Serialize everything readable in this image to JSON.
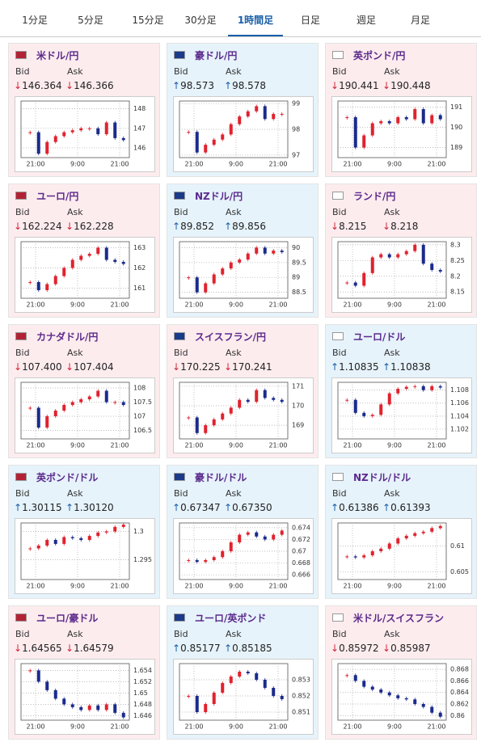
{
  "tabs": [
    "1分足",
    "5分足",
    "15分足",
    "30分足",
    "1時間足",
    "日足",
    "週足",
    "月足"
  ],
  "active_tab": 4,
  "bid_label": "Bid",
  "ask_label": "Ask",
  "x_labels": [
    "21:00",
    "9:00",
    "21:00"
  ],
  "panels": [
    {
      "name": "米ドル/円",
      "trend": "down",
      "bid": "↓146.364",
      "ask": "↓146.366",
      "ylim": [
        145.5,
        148.4
      ],
      "yticks": [
        146,
        147,
        148
      ],
      "values": [
        146.8,
        145.7,
        146.3,
        146.6,
        146.8,
        146.9,
        147.0,
        147.0,
        146.7,
        147.3,
        146.5,
        146.4
      ]
    },
    {
      "name": "豪ドル/円",
      "trend": "up",
      "bid": "↑98.573",
      "ask": "↑98.578",
      "ylim": [
        96.9,
        99.1
      ],
      "yticks": [
        97,
        98,
        99
      ],
      "values": [
        97.9,
        97.1,
        97.4,
        97.6,
        97.8,
        98.2,
        98.5,
        98.7,
        98.9,
        98.4,
        98.6,
        98.6
      ]
    },
    {
      "name": "英ポンド/円",
      "trend": "down",
      "bid": "↓190.441",
      "ask": "↓190.448",
      "ylim": [
        188.5,
        191.3
      ],
      "yticks": [
        189,
        190,
        191
      ],
      "values": [
        190.5,
        189.0,
        189.6,
        190.2,
        190.3,
        190.2,
        190.5,
        190.4,
        190.9,
        190.2,
        190.6,
        190.4
      ]
    },
    {
      "name": "ユーロ/円",
      "trend": "down",
      "bid": "↓162.224",
      "ask": "↓162.228",
      "ylim": [
        160.5,
        163.3
      ],
      "yticks": [
        161,
        162,
        163
      ],
      "values": [
        161.3,
        160.9,
        161.2,
        161.6,
        162.0,
        162.4,
        162.6,
        162.7,
        163.0,
        162.4,
        162.3,
        162.2
      ]
    },
    {
      "name": "NZドル/円",
      "trend": "up",
      "bid": "↑89.852",
      "ask": "↑89.856",
      "ylim": [
        88.3,
        90.2
      ],
      "yticks": [
        88.5,
        89,
        89.5,
        90
      ],
      "values": [
        89.0,
        88.5,
        88.8,
        89.1,
        89.3,
        89.5,
        89.6,
        89.8,
        90.0,
        89.8,
        89.9,
        89.85
      ]
    },
    {
      "name": "ランド/円",
      "trend": "down",
      "bid": "↓8.215",
      "ask": "↓8.218",
      "ylim": [
        8.13,
        8.31
      ],
      "yticks": [
        8.15,
        8.2,
        8.25,
        8.3
      ],
      "values": [
        8.18,
        8.17,
        8.21,
        8.26,
        8.27,
        8.26,
        8.27,
        8.28,
        8.3,
        8.24,
        8.22,
        8.215
      ]
    },
    {
      "name": "カナダドル/円",
      "trend": "down",
      "bid": "↓107.400",
      "ask": "↓107.404",
      "ylim": [
        106.2,
        108.2
      ],
      "yticks": [
        106.5,
        107,
        107.5,
        108
      ],
      "values": [
        107.3,
        106.6,
        107.0,
        107.2,
        107.4,
        107.5,
        107.6,
        107.7,
        107.9,
        107.5,
        107.5,
        107.4
      ]
    },
    {
      "name": "スイスフラン/円",
      "trend": "down",
      "bid": "↓170.225",
      "ask": "↓170.241",
      "ylim": [
        168.3,
        171.2
      ],
      "yticks": [
        169,
        170,
        171
      ],
      "values": [
        169.4,
        168.6,
        169.0,
        169.3,
        169.6,
        169.9,
        170.3,
        170.2,
        170.8,
        170.4,
        170.3,
        170.2
      ]
    },
    {
      "name": "ユーロ/ドル",
      "trend": "up",
      "bid": "↑1.10835",
      "ask": "↑1.10838",
      "ylim": [
        1.1005,
        1.1092
      ],
      "yticks": [
        1.102,
        1.104,
        1.106,
        1.108
      ],
      "values": [
        1.1065,
        1.1045,
        1.104,
        1.1042,
        1.1058,
        1.1075,
        1.1082,
        1.1085,
        1.1086,
        1.108,
        1.1086,
        1.1084
      ]
    },
    {
      "name": "英ポンド/ドル",
      "trend": "up",
      "bid": "↑1.30115",
      "ask": "↑1.30120",
      "ylim": [
        1.2915,
        1.3015
      ],
      "yticks": [
        1.295,
        1.3
      ],
      "values": [
        1.297,
        1.2975,
        1.2985,
        1.2978,
        1.299,
        1.2988,
        1.2985,
        1.2992,
        1.2998,
        1.3,
        1.3008,
        1.3012
      ]
    },
    {
      "name": "豪ドル/ドル",
      "trend": "up",
      "bid": "↑0.67347",
      "ask": "↑0.67350",
      "ylim": [
        0.6652,
        0.6748
      ],
      "yticks": [
        0.666,
        0.668,
        0.67,
        0.672,
        0.674
      ],
      "values": [
        0.6685,
        0.6682,
        0.6685,
        0.669,
        0.67,
        0.6715,
        0.6728,
        0.6732,
        0.6725,
        0.672,
        0.6728,
        0.6735
      ]
    },
    {
      "name": "NZドル/ドル",
      "trend": "up",
      "bid": "↑0.61386",
      "ask": "↑0.61393",
      "ylim": [
        0.6035,
        0.6145
      ],
      "yticks": [
        0.605,
        0.61
      ],
      "values": [
        0.608,
        0.6078,
        0.6082,
        0.609,
        0.6095,
        0.6105,
        0.6115,
        0.612,
        0.6125,
        0.6128,
        0.6135,
        0.6139
      ]
    },
    {
      "name": "ユーロ/豪ドル",
      "trend": "down",
      "bid": "↓1.64565",
      "ask": "↓1.64579",
      "ylim": [
        1.6452,
        1.6552
      ],
      "yticks": [
        1.646,
        1.648,
        1.65,
        1.652,
        1.654
      ],
      "values": [
        1.654,
        1.652,
        1.6505,
        1.649,
        1.648,
        1.6475,
        1.647,
        1.6478,
        1.647,
        1.648,
        1.6465,
        1.6457
      ]
    },
    {
      "name": "ユーロ/英ポンド",
      "trend": "up",
      "bid": "↑0.85177",
      "ask": "↑0.85185",
      "ylim": [
        0.8505,
        0.854
      ],
      "yticks": [
        0.851,
        0.852,
        0.853
      ],
      "values": [
        0.852,
        0.851,
        0.8515,
        0.8522,
        0.8528,
        0.8532,
        0.8535,
        0.8534,
        0.853,
        0.8525,
        0.852,
        0.8518
      ]
    },
    {
      "name": "米ドル/スイスフラン",
      "trend": "down",
      "bid": "↓0.85972",
      "ask": "↓0.85987",
      "ylim": [
        0.8592,
        0.869
      ],
      "yticks": [
        0.86,
        0.862,
        0.864,
        0.866,
        0.868
      ],
      "values": [
        0.867,
        0.866,
        0.865,
        0.8645,
        0.864,
        0.8635,
        0.863,
        0.8628,
        0.862,
        0.8615,
        0.8605,
        0.8598
      ]
    }
  ]
}
